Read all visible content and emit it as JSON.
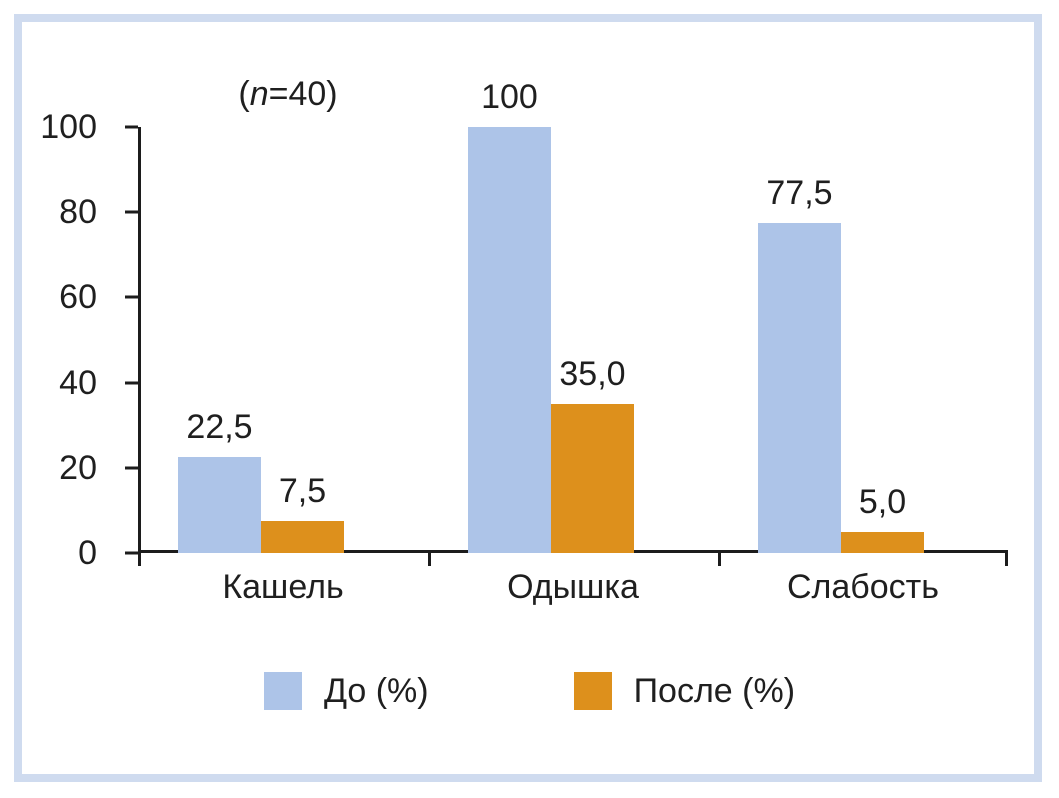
{
  "chart_data": {
    "type": "bar",
    "categories": [
      "Кашель",
      "Одышка",
      "Слабость"
    ],
    "series": [
      {
        "name": "До (%)",
        "values": [
          22.5,
          100,
          77.5
        ],
        "labels": [
          "22,5",
          "100",
          "77,5"
        ],
        "color": "#adc4e8"
      },
      {
        "name": "После (%)",
        "values": [
          7.5,
          35,
          5
        ],
        "labels": [
          "7,5",
          "35,0",
          "5,0"
        ],
        "color": "#dd901c"
      }
    ],
    "annotation": {
      "open": "(",
      "variable": "n",
      "rest": "=40)"
    },
    "yticks": [
      0,
      20,
      40,
      60,
      80,
      100
    ],
    "ylim": [
      0,
      100
    ],
    "xlabel": "",
    "ylabel": "",
    "grid": false,
    "legend_position": "bottom"
  },
  "colors": {
    "frame_border": "#cfdbef",
    "axis": "#1c1c1c",
    "text": "#1f1f1f",
    "plot_background": "#ffffff"
  }
}
